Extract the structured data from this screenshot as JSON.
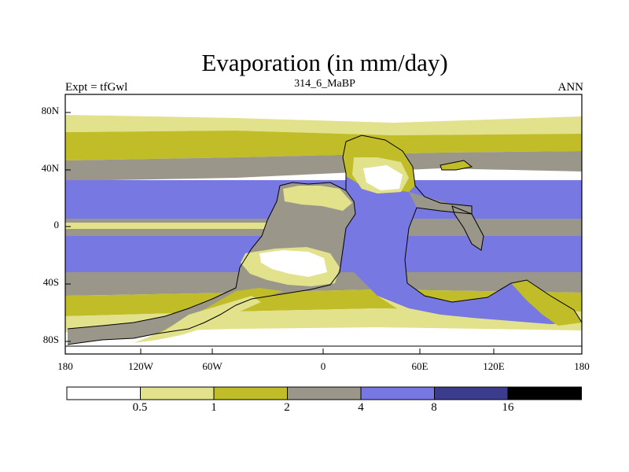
{
  "title": "Evaporation (in mm/day)",
  "subtitle": {
    "left": "Expt = tfGwl",
    "center": "314_6_MaBP",
    "right": "ANN"
  },
  "axes": {
    "y_ticks": [
      "80N",
      "40N",
      "0",
      "40S",
      "80S"
    ],
    "x_ticks": [
      "180",
      "120W",
      "60W",
      "0",
      "60E",
      "120E",
      "180"
    ]
  },
  "colorbar": {
    "labels": [
      "0.5",
      "1",
      "2",
      "4",
      "8",
      "16"
    ],
    "colors": [
      "#ffffff",
      "#e2e18c",
      "#c1bd28",
      "#9a978a",
      "#7878e2",
      "#3c3c8c",
      "#000000"
    ]
  },
  "chart_data": {
    "type": "heatmap",
    "variable": "Evaporation",
    "units": "mm/day",
    "x_range": [
      -180,
      180
    ],
    "y_range": [
      -90,
      90
    ],
    "levels": [
      0.5,
      1,
      2,
      4,
      8,
      16
    ]
  }
}
